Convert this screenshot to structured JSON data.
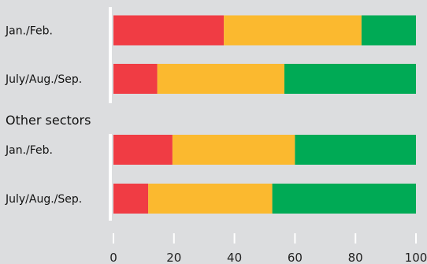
{
  "chart_data": {
    "type": "bar",
    "orientation": "horizontal",
    "stacked": true,
    "groups": [
      {
        "label": "",
        "categories": [
          "Jan./Feb.",
          "July/Aug./Sep."
        ]
      },
      {
        "label": "Other sectors",
        "categories": [
          "Jan./Feb.",
          "July/Aug./Sep."
        ]
      }
    ],
    "categories": [
      "Jan./Feb.",
      "July/Aug./Sep.",
      "Jan./Feb.",
      "July/Aug./Sep."
    ],
    "series": [
      {
        "color": "#f03c44",
        "values": [
          36.5,
          14.5,
          19.5,
          11.5
        ]
      },
      {
        "color": "#fbb92f",
        "values": [
          45.5,
          42.0,
          40.5,
          41.0
        ]
      },
      {
        "color": "#00aa55",
        "values": [
          18.0,
          43.5,
          40.0,
          47.5
        ]
      }
    ],
    "xlim": [
      0,
      100
    ],
    "xticks": [
      "0",
      "20",
      "40",
      "60",
      "80",
      "100"
    ],
    "title": "",
    "xlabel": "",
    "ylabel": "",
    "grid": false,
    "background": "#dcdddf",
    "axis_color": "#ffffff"
  }
}
